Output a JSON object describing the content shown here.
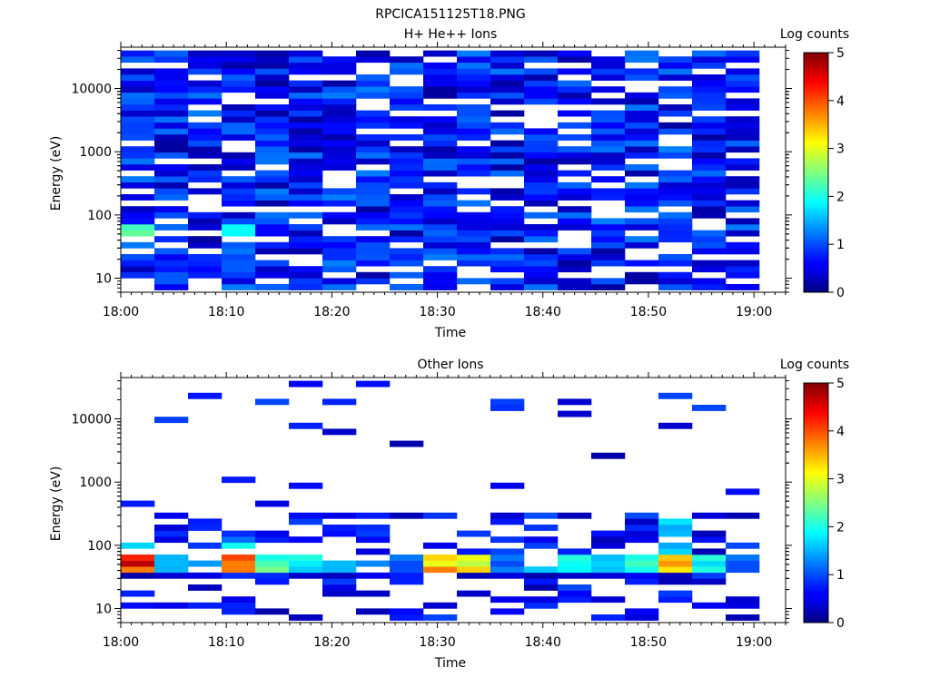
{
  "figure_title": "RPCICA151125T18.PNG",
  "chart_data": [
    {
      "type": "heatmap",
      "title": "H+ He++ Ions",
      "xlabel": "Time",
      "ylabel": "Energy (eV)",
      "x_ticks": [
        "18:00",
        "18:10",
        "18:20",
        "18:30",
        "18:40",
        "18:50",
        "19:00"
      ],
      "x_tick_minutes": [
        0,
        10,
        20,
        30,
        40,
        50,
        60
      ],
      "xlim_minutes": [
        0,
        63
      ],
      "y_scale": "log",
      "ylim": [
        6,
        45000
      ],
      "y_ticks": [
        10,
        100,
        1000,
        10000
      ],
      "y_tick_labels": [
        "10",
        "100",
        "1000",
        "10000"
      ],
      "colorbar_label": "Log counts",
      "colorbar_range": [
        0,
        5
      ],
      "colorbar_ticks": [
        "0",
        "1",
        "2",
        "3",
        "4",
        "5"
      ],
      "time_bins": 19,
      "energy_bins": 40,
      "description_of_values": "Log counts mostly 0-1 (dark/medium blue) across 10 eV - 40 keV with many empty (white) energy bins; slightly elevated (~1.5-2.5) near 40-60 eV at 18:00 and 18:10"
    },
    {
      "type": "heatmap",
      "title": "Other Ions",
      "xlabel": "Time",
      "ylabel": "Energy (eV)",
      "x_ticks": [
        "18:00",
        "18:10",
        "18:20",
        "18:30",
        "18:40",
        "18:50",
        "19:00"
      ],
      "x_tick_minutes": [
        0,
        10,
        20,
        30,
        40,
        50,
        60
      ],
      "xlim_minutes": [
        0,
        63
      ],
      "y_scale": "log",
      "ylim": [
        6,
        45000
      ],
      "y_ticks": [
        10,
        100,
        1000,
        10000
      ],
      "y_tick_labels": [
        "10",
        "100",
        "1000",
        "10000"
      ],
      "colorbar_label": "Log counts",
      "colorbar_range": [
        0,
        5
      ],
      "colorbar_ticks": [
        "0",
        "1",
        "2",
        "3",
        "4",
        "5"
      ],
      "time_bins": 19,
      "energy_bins": 40,
      "description_of_values": "Sparse data; strong band at ~30-60 eV with peaks ~4.5 at 18:00 and 18:10, ~3.5 at 18:30-18:35 and 18:50; weak scattered counts up to ~25 keV"
    }
  ]
}
